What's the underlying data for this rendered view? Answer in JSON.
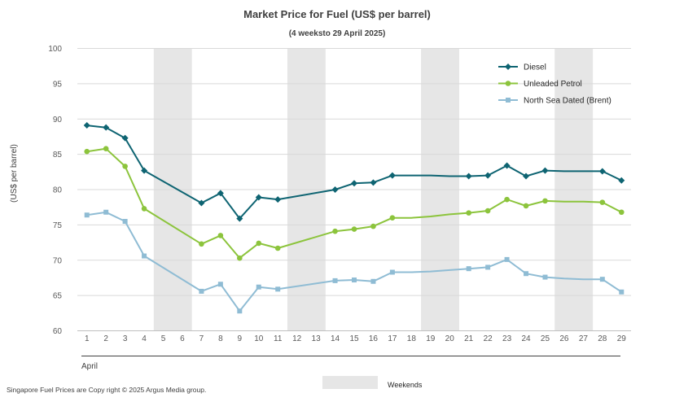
{
  "chart_data": {
    "type": "line",
    "title": "Market Price for Fuel (US$ per barrel)",
    "subtitle": "(4 weeksto 29 April 2025)",
    "xlabel": "",
    "ylabel": "(US$ per barrel)",
    "month_label": "April",
    "x": [
      1,
      2,
      3,
      4,
      5,
      6,
      7,
      8,
      9,
      10,
      11,
      12,
      13,
      14,
      15,
      16,
      17,
      18,
      19,
      20,
      21,
      22,
      23,
      24,
      25,
      26,
      27,
      28,
      29
    ],
    "ylim": [
      60,
      100
    ],
    "yticks": [
      60,
      65,
      70,
      75,
      80,
      85,
      90,
      95,
      100
    ],
    "grid": true,
    "legend_position": "top-right",
    "weekends": [
      [
        5,
        6
      ],
      [
        12,
        13
      ],
      [
        19,
        20
      ],
      [
        26,
        27
      ]
    ],
    "series": [
      {
        "name": "Diesel",
        "color": "#0e6472",
        "marker": "diamond",
        "points": [
          [
            1,
            89.1
          ],
          [
            2,
            88.8
          ],
          [
            3,
            87.3
          ],
          [
            4,
            82.7
          ],
          [
            7,
            78.1
          ],
          [
            8,
            79.5
          ],
          [
            9,
            75.9
          ],
          [
            10,
            78.9
          ],
          [
            11,
            78.6
          ],
          [
            14,
            80.0
          ],
          [
            15,
            80.9
          ],
          [
            16,
            81.0
          ],
          [
            17,
            82.0
          ],
          [
            21,
            81.9
          ],
          [
            22,
            82.0
          ],
          [
            23,
            83.4
          ],
          [
            24,
            81.9
          ],
          [
            25,
            82.7
          ],
          [
            28,
            82.6
          ],
          [
            29,
            81.3
          ]
        ],
        "connectors": [
          [
            17,
            82.0
          ],
          [
            18,
            82.0
          ],
          [
            19,
            82.0
          ],
          [
            20,
            81.9
          ],
          [
            25,
            82.7
          ],
          [
            26,
            82.6
          ],
          [
            27,
            82.6
          ]
        ]
      },
      {
        "name": "Unleaded Petrol",
        "color": "#8cc43c",
        "marker": "circle",
        "points": [
          [
            1,
            85.4
          ],
          [
            2,
            85.8
          ],
          [
            3,
            83.3
          ],
          [
            4,
            77.3
          ],
          [
            7,
            72.3
          ],
          [
            8,
            73.5
          ],
          [
            9,
            70.3
          ],
          [
            10,
            72.4
          ],
          [
            11,
            71.7
          ],
          [
            14,
            74.1
          ],
          [
            15,
            74.4
          ],
          [
            16,
            74.8
          ],
          [
            17,
            76.0
          ],
          [
            21,
            76.7
          ],
          [
            22,
            77.0
          ],
          [
            23,
            78.6
          ],
          [
            24,
            77.7
          ],
          [
            25,
            78.4
          ],
          [
            28,
            78.2
          ],
          [
            29,
            76.8
          ]
        ],
        "connectors": [
          [
            18,
            76.0
          ],
          [
            19,
            76.2
          ],
          [
            20,
            76.5
          ],
          [
            26,
            78.3
          ],
          [
            27,
            78.3
          ]
        ]
      },
      {
        "name": "North Sea Dated (Brent)",
        "color": "#8fbcd4",
        "marker": "square",
        "points": [
          [
            1,
            76.4
          ],
          [
            2,
            76.8
          ],
          [
            3,
            75.5
          ],
          [
            4,
            70.6
          ],
          [
            7,
            65.6
          ],
          [
            8,
            66.6
          ],
          [
            9,
            62.8
          ],
          [
            10,
            66.2
          ],
          [
            11,
            65.9
          ],
          [
            14,
            67.1
          ],
          [
            15,
            67.2
          ],
          [
            16,
            67.0
          ],
          [
            17,
            68.3
          ],
          [
            21,
            68.8
          ],
          [
            22,
            69.0
          ],
          [
            23,
            70.1
          ],
          [
            24,
            68.1
          ],
          [
            25,
            67.6
          ],
          [
            28,
            67.3
          ],
          [
            29,
            65.5
          ]
        ],
        "connectors": [
          [
            18,
            68.3
          ],
          [
            19,
            68.4
          ],
          [
            20,
            68.6
          ],
          [
            26,
            67.4
          ],
          [
            27,
            67.3
          ]
        ]
      }
    ]
  },
  "legend": {
    "weekends_label": "Weekends"
  },
  "footer": {
    "copyright": "Singapore Fuel Prices are Copy right © 2025 Argus Media group."
  }
}
